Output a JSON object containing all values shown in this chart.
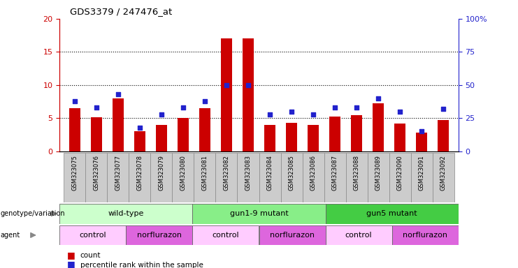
{
  "title": "GDS3379 / 247476_at",
  "samples": [
    "GSM323075",
    "GSM323076",
    "GSM323077",
    "GSM323078",
    "GSM323079",
    "GSM323080",
    "GSM323081",
    "GSM323082",
    "GSM323083",
    "GSM323084",
    "GSM323085",
    "GSM323086",
    "GSM323087",
    "GSM323088",
    "GSM323089",
    "GSM323090",
    "GSM323091",
    "GSM323092"
  ],
  "counts": [
    6.5,
    5.2,
    8.0,
    3.0,
    4.0,
    5.0,
    6.5,
    17.0,
    17.0,
    4.0,
    4.3,
    4.0,
    5.3,
    5.5,
    7.3,
    4.2,
    2.8,
    4.7
  ],
  "percentiles": [
    38,
    33,
    43,
    18,
    28,
    33,
    38,
    50,
    50,
    28,
    30,
    28,
    33,
    33,
    40,
    30,
    15,
    32
  ],
  "ylim_left": [
    0,
    20
  ],
  "ylim_right": [
    0,
    100
  ],
  "yticks_left": [
    0,
    5,
    10,
    15,
    20
  ],
  "yticks_right": [
    0,
    25,
    50,
    75,
    100
  ],
  "bar_color": "#cc0000",
  "dot_color": "#2222cc",
  "genotype_groups": [
    {
      "label": "wild-type",
      "start": 0,
      "end": 6,
      "color": "#ccffcc"
    },
    {
      "label": "gun1-9 mutant",
      "start": 6,
      "end": 12,
      "color": "#88ee88"
    },
    {
      "label": "gun5 mutant",
      "start": 12,
      "end": 18,
      "color": "#44cc44"
    }
  ],
  "agent_groups": [
    {
      "label": "control",
      "start": 0,
      "end": 3,
      "color": "#ffccff"
    },
    {
      "label": "norflurazon",
      "start": 3,
      "end": 6,
      "color": "#dd66dd"
    },
    {
      "label": "control",
      "start": 6,
      "end": 9,
      "color": "#ffccff"
    },
    {
      "label": "norflurazon",
      "start": 9,
      "end": 12,
      "color": "#dd66dd"
    },
    {
      "label": "control",
      "start": 12,
      "end": 15,
      "color": "#ffccff"
    },
    {
      "label": "norflurazon",
      "start": 15,
      "end": 18,
      "color": "#dd66dd"
    }
  ],
  "left_axis_color": "#cc0000",
  "right_axis_color": "#2222cc",
  "xtick_box_color": "#cccccc",
  "bar_width": 0.5
}
